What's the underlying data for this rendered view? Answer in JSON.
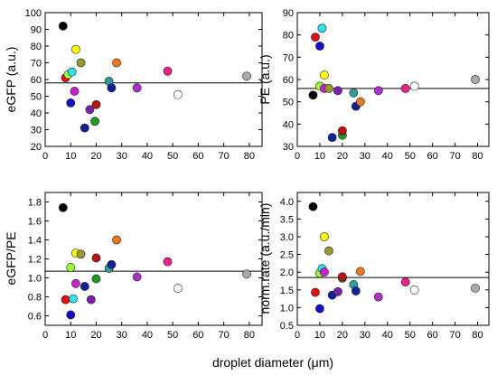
{
  "figure": {
    "xlabel": "droplet diameter (μm)"
  },
  "colors": {
    "black": "#000000",
    "yellow": "#ffff00",
    "cyan": "#33e0ee",
    "olive": "#999933",
    "orange": "#ee7722",
    "red": "#dd1111",
    "blue": "#1111cc",
    "darkblue": "#112299",
    "magenta": "#cc22cc",
    "lime": "#99ff33",
    "green": "#229922",
    "darkred": "#bb1111",
    "teal": "#339999",
    "purple": "#7722aa",
    "violet": "#aa33cc",
    "pink": "#ee2288",
    "white": "#ffffff",
    "gray": "#aaaaaa"
  },
  "chart_data": [
    {
      "type": "scatter",
      "ylabel": "eGFP (a.u.)",
      "xlim": [
        0,
        85
      ],
      "ylim": [
        20,
        100
      ],
      "xticks": [
        0,
        10,
        20,
        30,
        40,
        50,
        60,
        70,
        80
      ],
      "yticks": [
        20,
        30,
        40,
        50,
        60,
        70,
        80,
        90,
        100
      ],
      "hline": 58,
      "points": [
        {
          "x": 7,
          "y": 92,
          "c": "black"
        },
        {
          "x": 8,
          "y": 61,
          "c": "red"
        },
        {
          "x": 10,
          "y": 46,
          "c": "blue"
        },
        {
          "x": 9,
          "y": 63,
          "c": "lime"
        },
        {
          "x": 10.5,
          "y": 64.5,
          "c": "cyan"
        },
        {
          "x": 12,
          "y": 78,
          "c": "yellow"
        },
        {
          "x": 11.5,
          "y": 53,
          "c": "magenta"
        },
        {
          "x": 14,
          "y": 70,
          "c": "olive"
        },
        {
          "x": 15.5,
          "y": 31,
          "c": "darkblue"
        },
        {
          "x": 17.5,
          "y": 42,
          "c": "purple"
        },
        {
          "x": 19.5,
          "y": 35,
          "c": "green"
        },
        {
          "x": 20,
          "y": 45,
          "c": "darkred"
        },
        {
          "x": 25,
          "y": 59,
          "c": "teal"
        },
        {
          "x": 26,
          "y": 55,
          "c": "darkblue"
        },
        {
          "x": 28,
          "y": 70,
          "c": "orange"
        },
        {
          "x": 36,
          "y": 55,
          "c": "violet"
        },
        {
          "x": 48,
          "y": 65,
          "c": "pink"
        },
        {
          "x": 52,
          "y": 51,
          "c": "white"
        },
        {
          "x": 79,
          "y": 62,
          "c": "gray"
        }
      ]
    },
    {
      "type": "scatter",
      "ylabel": "PE (a.u.)",
      "xlim": [
        0,
        85
      ],
      "ylim": [
        30,
        90
      ],
      "xticks": [
        0,
        10,
        20,
        30,
        40,
        50,
        60,
        70,
        80
      ],
      "yticks": [
        30,
        40,
        50,
        60,
        70,
        80,
        90
      ],
      "hline": 56,
      "points": [
        {
          "x": 7,
          "y": 53,
          "c": "black"
        },
        {
          "x": 8,
          "y": 79,
          "c": "red"
        },
        {
          "x": 10,
          "y": 75,
          "c": "blue"
        },
        {
          "x": 10,
          "y": 57,
          "c": "lime"
        },
        {
          "x": 11,
          "y": 83,
          "c": "cyan"
        },
        {
          "x": 12,
          "y": 62,
          "c": "yellow"
        },
        {
          "x": 12,
          "y": 56,
          "c": "magenta"
        },
        {
          "x": 14,
          "y": 56,
          "c": "olive"
        },
        {
          "x": 15.5,
          "y": 34,
          "c": "darkblue"
        },
        {
          "x": 18,
          "y": 55,
          "c": "purple"
        },
        {
          "x": 20,
          "y": 35,
          "c": "green"
        },
        {
          "x": 20,
          "y": 37,
          "c": "darkred"
        },
        {
          "x": 25,
          "y": 54,
          "c": "teal"
        },
        {
          "x": 26,
          "y": 48,
          "c": "darkblue"
        },
        {
          "x": 28,
          "y": 50,
          "c": "orange"
        },
        {
          "x": 36,
          "y": 55,
          "c": "violet"
        },
        {
          "x": 48,
          "y": 56,
          "c": "pink"
        },
        {
          "x": 52,
          "y": 57,
          "c": "white"
        },
        {
          "x": 79,
          "y": 60,
          "c": "gray"
        }
      ]
    },
    {
      "type": "scatter",
      "ylabel": "eGFP/PE",
      "xlim": [
        0,
        85
      ],
      "ylim": [
        0.5,
        1.9
      ],
      "xticks": [
        0,
        10,
        20,
        30,
        40,
        50,
        60,
        70,
        80
      ],
      "yticks": [
        "0.6",
        "0.8",
        "1.0",
        "1.2",
        "1.4",
        "1.6",
        "1.8"
      ],
      "hline": 1.07,
      "points": [
        {
          "x": 7,
          "y": 1.74,
          "c": "black"
        },
        {
          "x": 8,
          "y": 0.77,
          "c": "red"
        },
        {
          "x": 10,
          "y": 0.61,
          "c": "blue"
        },
        {
          "x": 10,
          "y": 1.11,
          "c": "lime"
        },
        {
          "x": 11,
          "y": 0.78,
          "c": "cyan"
        },
        {
          "x": 12,
          "y": 1.26,
          "c": "yellow"
        },
        {
          "x": 12,
          "y": 0.94,
          "c": "magenta"
        },
        {
          "x": 14,
          "y": 1.25,
          "c": "olive"
        },
        {
          "x": 15.5,
          "y": 0.91,
          "c": "darkblue"
        },
        {
          "x": 18,
          "y": 0.77,
          "c": "purple"
        },
        {
          "x": 20,
          "y": 0.99,
          "c": "green"
        },
        {
          "x": 20,
          "y": 1.21,
          "c": "darkred"
        },
        {
          "x": 25,
          "y": 1.1,
          "c": "teal"
        },
        {
          "x": 26,
          "y": 1.14,
          "c": "darkblue"
        },
        {
          "x": 28,
          "y": 1.4,
          "c": "orange"
        },
        {
          "x": 36,
          "y": 1.01,
          "c": "violet"
        },
        {
          "x": 48,
          "y": 1.17,
          "c": "pink"
        },
        {
          "x": 52,
          "y": 0.89,
          "c": "white"
        },
        {
          "x": 79,
          "y": 1.04,
          "c": "gray"
        }
      ]
    },
    {
      "type": "scatter",
      "ylabel": "norm.rate (a.u./min)",
      "xlim": [
        0,
        85
      ],
      "ylim": [
        0.5,
        4.25
      ],
      "xticks": [
        0,
        10,
        20,
        30,
        40,
        50,
        60,
        70,
        80
      ],
      "yticks": [
        "0.5",
        "1.0",
        "1.5",
        "2.0",
        "2.5",
        "3.0",
        "3.5",
        "4.0"
      ],
      "hline": 1.85,
      "points": [
        {
          "x": 7,
          "y": 3.85,
          "c": "black"
        },
        {
          "x": 8,
          "y": 1.43,
          "c": "red"
        },
        {
          "x": 10,
          "y": 0.97,
          "c": "blue"
        },
        {
          "x": 10,
          "y": 1.97,
          "c": "lime"
        },
        {
          "x": 11,
          "y": 2.1,
          "c": "cyan"
        },
        {
          "x": 12,
          "y": 3.0,
          "c": "yellow"
        },
        {
          "x": 12,
          "y": 2.0,
          "c": "magenta"
        },
        {
          "x": 14,
          "y": 2.6,
          "c": "olive"
        },
        {
          "x": 15.5,
          "y": 1.35,
          "c": "darkblue"
        },
        {
          "x": 18,
          "y": 1.45,
          "c": "purple"
        },
        {
          "x": 20,
          "y": 1.83,
          "c": "green"
        },
        {
          "x": 20,
          "y": 1.87,
          "c": "darkred"
        },
        {
          "x": 25,
          "y": 1.65,
          "c": "teal"
        },
        {
          "x": 26,
          "y": 1.47,
          "c": "darkblue"
        },
        {
          "x": 28,
          "y": 2.02,
          "c": "orange"
        },
        {
          "x": 36,
          "y": 1.3,
          "c": "violet"
        },
        {
          "x": 48,
          "y": 1.72,
          "c": "pink"
        },
        {
          "x": 52,
          "y": 1.5,
          "c": "white"
        },
        {
          "x": 79,
          "y": 1.55,
          "c": "gray"
        }
      ]
    }
  ]
}
